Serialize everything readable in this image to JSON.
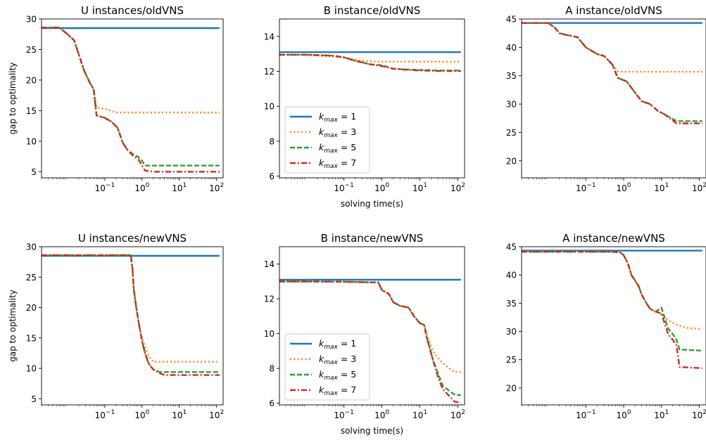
{
  "colors": {
    "kmax1": "#1f77b4",
    "kmax3": "#ff7f0e",
    "kmax5": "#2ca02c",
    "kmax7": "#d62728"
  },
  "legend_entries": [
    "k_max = 1",
    "k_max = 3",
    "k_max = 5",
    "k_max = 7"
  ],
  "chart_data": [
    {
      "type": "line",
      "title": "U instances/oldVNS",
      "xlabel": "",
      "ylabel": "gap to optimality",
      "xscale": "log",
      "xlim": [
        0.002,
        150
      ],
      "ylim": [
        4,
        30
      ],
      "yticks": [
        5,
        10,
        15,
        20,
        25,
        30
      ],
      "legend": "none",
      "series": [
        {
          "name": "k_max = 1",
          "style": "solid",
          "x": [
            0.002,
            120
          ],
          "y": [
            28.5,
            28.5
          ]
        },
        {
          "name": "k_max = 3",
          "style": "dotted",
          "x": [
            0.002,
            0.006,
            0.01,
            0.015,
            0.02,
            0.028,
            0.04,
            0.05,
            0.06,
            0.1,
            0.2,
            1,
            10,
            120
          ],
          "y": [
            28.6,
            28.6,
            27.5,
            26.5,
            24.2,
            21.5,
            19.5,
            18.5,
            15.5,
            15.3,
            14.7,
            14.7,
            14.7,
            14.7
          ]
        },
        {
          "name": "k_max = 5",
          "style": "dashed",
          "x": [
            0.002,
            0.006,
            0.01,
            0.015,
            0.02,
            0.028,
            0.04,
            0.05,
            0.06,
            0.08,
            0.1,
            0.15,
            0.22,
            0.3,
            0.4,
            0.6,
            0.8,
            1.0,
            1.2,
            10,
            120
          ],
          "y": [
            28.6,
            28.6,
            27.5,
            26.5,
            24.2,
            21.5,
            19.5,
            18.5,
            14.2,
            14.0,
            13.8,
            13.2,
            12.2,
            9.8,
            8.6,
            7.8,
            7.4,
            6.8,
            6.0,
            6.0,
            6.0
          ]
        },
        {
          "name": "k_max = 7",
          "style": "dashdot",
          "x": [
            0.002,
            0.006,
            0.01,
            0.015,
            0.02,
            0.028,
            0.04,
            0.05,
            0.06,
            0.08,
            0.1,
            0.15,
            0.22,
            0.3,
            0.4,
            0.6,
            0.8,
            1.0,
            1.2,
            2.0,
            10,
            120
          ],
          "y": [
            28.6,
            28.6,
            27.5,
            26.5,
            24.2,
            21.5,
            19.5,
            18.5,
            14.2,
            14.0,
            13.8,
            13.2,
            12.2,
            9.8,
            8.6,
            7.5,
            7.0,
            6.0,
            5.2,
            5.0,
            5.0,
            5.0
          ]
        }
      ]
    },
    {
      "type": "line",
      "title": "B instance/oldVNS",
      "xlabel": "solving time(s)",
      "ylabel": "",
      "xscale": "log",
      "xlim": [
        0.002,
        150
      ],
      "ylim": [
        5.9,
        15
      ],
      "yticks": [
        6,
        8,
        10,
        12,
        14
      ],
      "legend": "bottom-left",
      "series": [
        {
          "name": "k_max = 1",
          "style": "solid",
          "x": [
            0.002,
            120
          ],
          "y": [
            13.1,
            13.1
          ]
        },
        {
          "name": "k_max = 3",
          "style": "dotted",
          "x": [
            0.002,
            0.01,
            0.1,
            0.3,
            1,
            3,
            10,
            120
          ],
          "y": [
            12.95,
            12.95,
            12.8,
            12.6,
            12.55,
            12.55,
            12.55,
            12.55
          ]
        },
        {
          "name": "k_max = 5",
          "style": "dashed",
          "x": [
            0.002,
            0.01,
            0.05,
            0.1,
            0.2,
            0.5,
            1,
            2,
            5,
            10,
            30,
            120
          ],
          "y": [
            12.95,
            12.95,
            12.9,
            12.8,
            12.6,
            12.4,
            12.35,
            12.15,
            12.1,
            12.08,
            12.05,
            12.05
          ]
        },
        {
          "name": "k_max = 7",
          "style": "dashdot",
          "x": [
            0.002,
            0.01,
            0.05,
            0.1,
            0.2,
            0.5,
            1,
            2,
            5,
            10,
            30,
            120
          ],
          "y": [
            12.95,
            12.95,
            12.9,
            12.8,
            12.6,
            12.4,
            12.3,
            12.15,
            12.08,
            12.05,
            12.02,
            12.02
          ]
        }
      ]
    },
    {
      "type": "line",
      "title": "A instance/oldVNS",
      "xlabel": "",
      "ylabel": "",
      "xscale": "log",
      "xlim": [
        0.002,
        150
      ],
      "ylim": [
        17,
        45
      ],
      "yticks": [
        20,
        25,
        30,
        35,
        40,
        45
      ],
      "legend": "none",
      "series": [
        {
          "name": "k_max = 1",
          "style": "solid",
          "x": [
            0.002,
            120
          ],
          "y": [
            44.3,
            44.3
          ]
        },
        {
          "name": "k_max = 3",
          "style": "dotted",
          "x": [
            0.002,
            0.01,
            0.015,
            0.02,
            0.03,
            0.06,
            0.1,
            0.2,
            0.3,
            0.5,
            0.7,
            1,
            10,
            120
          ],
          "y": [
            44.3,
            44.3,
            43.5,
            42.5,
            42.2,
            41.8,
            40.0,
            38.8,
            38.5,
            37.0,
            35.8,
            35.7,
            35.7,
            35.7
          ]
        },
        {
          "name": "k_max = 5",
          "style": "dashed",
          "x": [
            0.002,
            0.01,
            0.015,
            0.02,
            0.03,
            0.06,
            0.1,
            0.2,
            0.3,
            0.5,
            0.7,
            1.2,
            2,
            3,
            5,
            8,
            12,
            25,
            120
          ],
          "y": [
            44.3,
            44.3,
            43.5,
            42.5,
            42.2,
            41.8,
            40.0,
            38.8,
            38.5,
            37.0,
            34.6,
            34.0,
            32.0,
            30.5,
            30.0,
            28.8,
            28.2,
            27.0,
            27.0
          ]
        },
        {
          "name": "k_max = 7",
          "style": "dashdot",
          "x": [
            0.002,
            0.01,
            0.015,
            0.02,
            0.03,
            0.06,
            0.1,
            0.2,
            0.3,
            0.5,
            0.7,
            1.2,
            2,
            3,
            5,
            8,
            12,
            25,
            120
          ],
          "y": [
            44.3,
            44.3,
            43.5,
            42.5,
            42.2,
            41.8,
            40.0,
            38.8,
            38.5,
            37.0,
            34.6,
            34.0,
            32.0,
            30.5,
            30.0,
            28.8,
            28.2,
            26.6,
            26.6
          ]
        }
      ]
    },
    {
      "type": "line",
      "title": "U instances/newVNS",
      "xlabel": "",
      "ylabel": "gap to optimality",
      "xscale": "log",
      "xlim": [
        0.002,
        150
      ],
      "ylim": [
        4,
        30
      ],
      "yticks": [
        5,
        10,
        15,
        20,
        25,
        30
      ],
      "legend": "none",
      "series": [
        {
          "name": "k_max = 1",
          "style": "solid",
          "x": [
            0.002,
            120
          ],
          "y": [
            28.5,
            28.5
          ]
        },
        {
          "name": "k_max = 3",
          "style": "dotted",
          "x": [
            0.002,
            0.5,
            0.55,
            0.6,
            0.7,
            0.85,
            1.0,
            1.2,
            1.5,
            2.0,
            120
          ],
          "y": [
            28.6,
            28.6,
            26.5,
            23.0,
            20.0,
            16.8,
            15.0,
            13.5,
            12.0,
            11.1,
            11.1
          ]
        },
        {
          "name": "k_max = 5",
          "style": "dashed",
          "x": [
            0.002,
            0.5,
            0.55,
            0.6,
            0.7,
            0.85,
            1.0,
            1.2,
            1.5,
            2.0,
            3.0,
            120
          ],
          "y": [
            28.6,
            28.6,
            26.5,
            23.0,
            20.0,
            16.8,
            14.5,
            12.5,
            10.8,
            9.8,
            9.4,
            9.4
          ]
        },
        {
          "name": "k_max = 7",
          "style": "dashdot",
          "x": [
            0.002,
            0.5,
            0.55,
            0.6,
            0.7,
            0.85,
            1.0,
            1.2,
            1.5,
            2.0,
            3.0,
            4.0,
            120
          ],
          "y": [
            28.6,
            28.6,
            26.5,
            23.0,
            20.0,
            16.8,
            14.5,
            12.5,
            10.8,
            9.8,
            9.2,
            8.9,
            8.9
          ]
        }
      ]
    },
    {
      "type": "line",
      "title": "B instance/newVNS",
      "xlabel": "solving time(s)",
      "ylabel": "",
      "xscale": "log",
      "xlim": [
        0.002,
        150
      ],
      "ylim": [
        5.9,
        15
      ],
      "yticks": [
        6,
        8,
        10,
        12,
        14
      ],
      "legend": "bottom-left",
      "series": [
        {
          "name": "k_max = 1",
          "style": "solid",
          "x": [
            0.002,
            120
          ],
          "y": [
            13.1,
            13.1
          ]
        },
        {
          "name": "k_max = 3",
          "style": "dotted",
          "x": [
            0.002,
            0.01,
            0.1,
            0.5,
            0.8,
            1.0,
            1.5,
            2,
            3,
            5,
            7,
            10,
            13,
            15,
            18,
            22,
            30,
            40,
            60,
            80,
            120
          ],
          "y": [
            13.0,
            13.0,
            12.98,
            12.95,
            12.95,
            12.5,
            12.3,
            11.8,
            11.6,
            11.5,
            11.0,
            10.6,
            10.5,
            10.0,
            9.5,
            9.0,
            8.6,
            8.3,
            8.0,
            7.8,
            7.8
          ]
        },
        {
          "name": "k_max = 5",
          "style": "dashed",
          "x": [
            0.002,
            0.01,
            0.1,
            0.5,
            0.8,
            1.0,
            1.5,
            2,
            3,
            5,
            7,
            10,
            13,
            15,
            18,
            22,
            30,
            40,
            60,
            80,
            120
          ],
          "y": [
            13.0,
            13.0,
            12.98,
            12.95,
            12.95,
            12.5,
            12.3,
            11.8,
            11.6,
            11.5,
            11.0,
            10.6,
            10.5,
            9.8,
            9.2,
            8.5,
            7.7,
            7.0,
            6.7,
            6.5,
            6.45
          ]
        },
        {
          "name": "k_max = 7",
          "style": "dashdot",
          "x": [
            0.002,
            0.01,
            0.1,
            0.5,
            0.8,
            1.0,
            1.5,
            2,
            3,
            5,
            7,
            10,
            13,
            15,
            18,
            22,
            30,
            40,
            60,
            80,
            120
          ],
          "y": [
            13.0,
            13.0,
            12.98,
            12.95,
            12.95,
            12.5,
            12.3,
            11.8,
            11.6,
            11.5,
            11.0,
            10.6,
            10.5,
            9.8,
            9.2,
            8.5,
            7.5,
            6.8,
            6.4,
            6.1,
            6.0
          ]
        }
      ]
    },
    {
      "type": "line",
      "title": "A instance/newVNS",
      "xlabel": "",
      "ylabel": "",
      "xscale": "log",
      "xlim": [
        0.002,
        150
      ],
      "ylim": [
        17,
        45
      ],
      "yticks": [
        20,
        25,
        30,
        35,
        40,
        45
      ],
      "legend": "none",
      "series": [
        {
          "name": "k_max = 1",
          "style": "solid",
          "x": [
            0.002,
            120
          ],
          "y": [
            44.3,
            44.3
          ]
        },
        {
          "name": "k_max = 3",
          "style": "dotted",
          "x": [
            0.002,
            0.5,
            0.8,
            1.0,
            1.3,
            1.6,
            2.0,
            2.5,
            3.0,
            4.0,
            5.0,
            7.0,
            10,
            15,
            20,
            30,
            50,
            120
          ],
          "y": [
            44.1,
            44.1,
            44.0,
            43.5,
            42.0,
            40.0,
            39.0,
            38.0,
            36.5,
            35.0,
            34.0,
            33.5,
            33.0,
            32.0,
            31.5,
            31.0,
            30.6,
            30.4
          ]
        },
        {
          "name": "k_max = 5",
          "style": "dashed",
          "x": [
            0.002,
            0.5,
            0.8,
            1.0,
            1.3,
            1.6,
            2.0,
            2.5,
            3.0,
            4.0,
            5.0,
            7.0,
            10,
            12,
            15,
            20,
            25,
            30,
            120
          ],
          "y": [
            44.1,
            44.1,
            44.0,
            43.5,
            42.0,
            40.0,
            39.0,
            38.0,
            36.5,
            35.0,
            34.0,
            33.5,
            34.2,
            32.5,
            30.5,
            29.5,
            28.5,
            26.8,
            26.6
          ]
        },
        {
          "name": "k_max = 7",
          "style": "dashdot",
          "x": [
            0.002,
            0.5,
            0.8,
            1.0,
            1.3,
            1.6,
            2.0,
            2.5,
            3.0,
            4.0,
            5.0,
            7.0,
            10,
            12,
            15,
            20,
            25,
            30,
            120
          ],
          "y": [
            44.1,
            44.1,
            44.0,
            43.5,
            42.0,
            40.0,
            39.0,
            38.0,
            36.5,
            35.0,
            34.0,
            33.5,
            33.2,
            31.5,
            29.5,
            28.5,
            27.5,
            23.7,
            23.5
          ]
        }
      ]
    }
  ]
}
